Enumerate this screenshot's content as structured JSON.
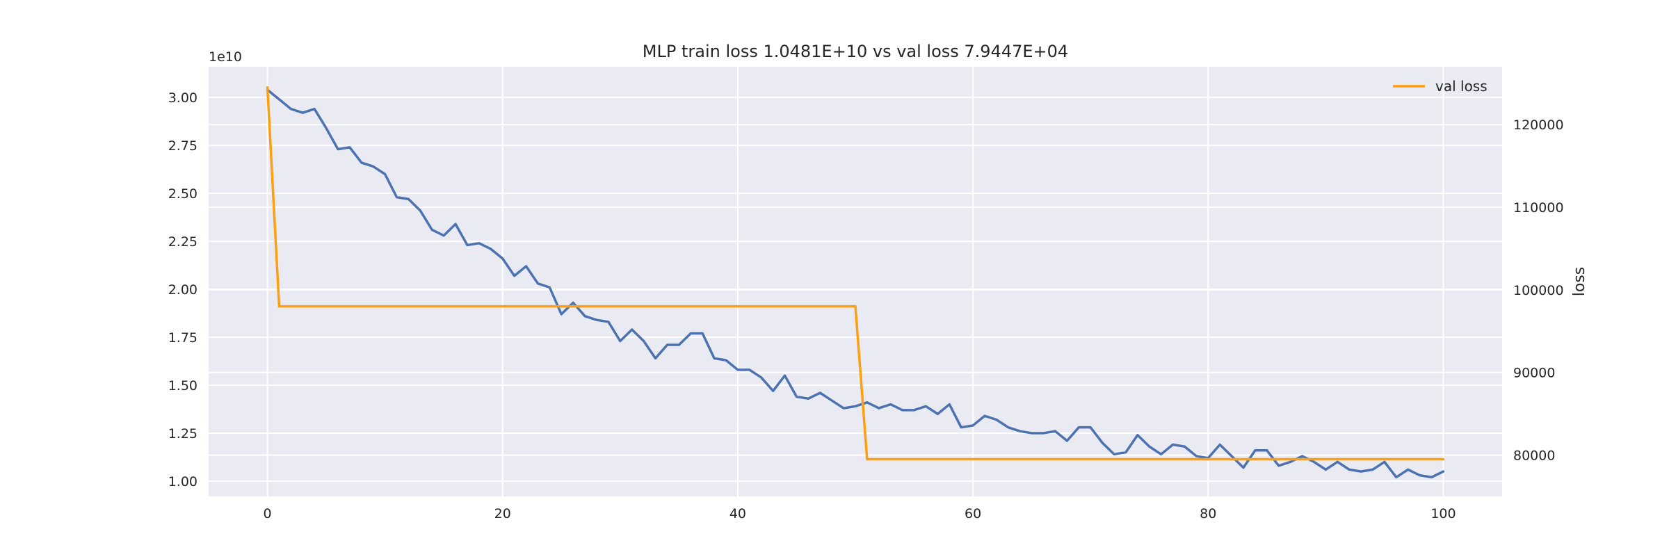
{
  "chart_data": {
    "type": "line",
    "title": "MLP train loss 1.0481E+10 vs val loss 7.9447E+04",
    "xlabel": "",
    "ylabel": "",
    "ylabel_right": "loss",
    "y_offset_text": "1e10",
    "xlim": [
      -5,
      105
    ],
    "ylim_left": [
      0.92,
      3.16
    ],
    "ylim_right": [
      75000,
      127000
    ],
    "x_ticks": [
      0,
      20,
      40,
      60,
      80,
      100
    ],
    "y_ticks_left": [
      1.0,
      1.25,
      1.5,
      1.75,
      2.0,
      2.25,
      2.5,
      2.75,
      3.0
    ],
    "y_tick_labels_left": [
      "1.00",
      "1.25",
      "1.50",
      "1.75",
      "2.00",
      "2.25",
      "2.50",
      "2.75",
      "3.00"
    ],
    "y_ticks_right": [
      80000,
      90000,
      100000,
      110000,
      120000
    ],
    "y_tick_labels_right": [
      "80000",
      "90000",
      "100000",
      "110000",
      "120000"
    ],
    "grid": true,
    "legend_position": "top-right",
    "series": [
      {
        "axis": "left",
        "color": "#4c72b0",
        "x": [
          0,
          1,
          2,
          3,
          4,
          5,
          6,
          7,
          8,
          9,
          10,
          11,
          12,
          13,
          14,
          15,
          16,
          17,
          18,
          19,
          20,
          21,
          22,
          23,
          24,
          25,
          26,
          27,
          28,
          29,
          30,
          31,
          32,
          33,
          34,
          35,
          36,
          37,
          38,
          39,
          40,
          41,
          42,
          43,
          44,
          45,
          46,
          47,
          48,
          49,
          50,
          51,
          52,
          53,
          54,
          55,
          56,
          57,
          58,
          59,
          60,
          61,
          62,
          63,
          64,
          65,
          66,
          67,
          68,
          69,
          70,
          71,
          72,
          73,
          74,
          75,
          76,
          77,
          78,
          79,
          80,
          81,
          82,
          83,
          84,
          85,
          86,
          87,
          88,
          89,
          90,
          91,
          92,
          93,
          94,
          95,
          96,
          97,
          98,
          99,
          100
        ],
        "values": [
          3.04,
          2.99,
          2.94,
          2.92,
          2.94,
          2.84,
          2.73,
          2.74,
          2.66,
          2.64,
          2.6,
          2.48,
          2.47,
          2.41,
          2.31,
          2.28,
          2.34,
          2.23,
          2.24,
          2.21,
          2.16,
          2.07,
          2.12,
          2.03,
          2.01,
          1.87,
          1.93,
          1.86,
          1.84,
          1.83,
          1.73,
          1.79,
          1.73,
          1.64,
          1.71,
          1.71,
          1.77,
          1.77,
          1.64,
          1.63,
          1.58,
          1.58,
          1.54,
          1.47,
          1.55,
          1.44,
          1.43,
          1.46,
          1.42,
          1.38,
          1.39,
          1.41,
          1.38,
          1.4,
          1.37,
          1.37,
          1.39,
          1.35,
          1.4,
          1.28,
          1.29,
          1.34,
          1.32,
          1.28,
          1.26,
          1.25,
          1.25,
          1.26,
          1.21,
          1.28,
          1.28,
          1.2,
          1.14,
          1.15,
          1.24,
          1.18,
          1.14,
          1.19,
          1.18,
          1.13,
          1.12,
          1.19,
          1.13,
          1.07,
          1.16,
          1.16,
          1.08,
          1.1,
          1.13,
          1.1,
          1.06,
          1.1,
          1.06,
          1.05,
          1.06,
          1.1,
          1.02,
          1.06,
          1.03,
          1.02,
          1.05
        ]
      },
      {
        "name": "val loss",
        "axis": "right",
        "color": "#ff9f0f",
        "x": [
          0,
          1,
          2,
          3,
          4,
          5,
          6,
          7,
          8,
          9,
          10,
          11,
          12,
          13,
          14,
          15,
          16,
          17,
          18,
          19,
          20,
          21,
          22,
          23,
          24,
          25,
          26,
          27,
          28,
          29,
          30,
          31,
          32,
          33,
          34,
          35,
          36,
          37,
          38,
          39,
          40,
          41,
          42,
          43,
          44,
          45,
          46,
          47,
          48,
          49,
          50,
          51,
          52,
          53,
          54,
          55,
          56,
          57,
          58,
          59,
          60,
          61,
          62,
          63,
          64,
          65,
          66,
          67,
          68,
          69,
          70,
          71,
          72,
          73,
          74,
          75,
          76,
          77,
          78,
          79,
          80,
          81,
          82,
          83,
          84,
          85,
          86,
          87,
          88,
          89,
          90,
          91,
          92,
          93,
          94,
          95,
          96,
          97,
          98,
          99,
          100
        ],
        "values": [
          124500,
          98000,
          98000,
          98000,
          98000,
          98000,
          98000,
          98000,
          98000,
          98000,
          98000,
          98000,
          98000,
          98000,
          98000,
          98000,
          98000,
          98000,
          98000,
          98000,
          98000,
          98000,
          98000,
          98000,
          98000,
          98000,
          98000,
          98000,
          98000,
          98000,
          98000,
          98000,
          98000,
          98000,
          98000,
          98000,
          98000,
          98000,
          98000,
          98000,
          98000,
          98000,
          98000,
          98000,
          98000,
          98000,
          98000,
          98000,
          98000,
          98000,
          98000,
          79500,
          79500,
          79500,
          79500,
          79500,
          79500,
          79500,
          79500,
          79500,
          79500,
          79500,
          79500,
          79500,
          79500,
          79500,
          79500,
          79500,
          79500,
          79500,
          79500,
          79500,
          79500,
          79500,
          79500,
          79500,
          79500,
          79500,
          79500,
          79500,
          79500,
          79500,
          79500,
          79500,
          79500,
          79500,
          79500,
          79500,
          79500,
          79500,
          79500,
          79500,
          79500,
          79500,
          79500,
          79500,
          79500,
          79500,
          79500,
          79500,
          79500
        ]
      }
    ]
  }
}
